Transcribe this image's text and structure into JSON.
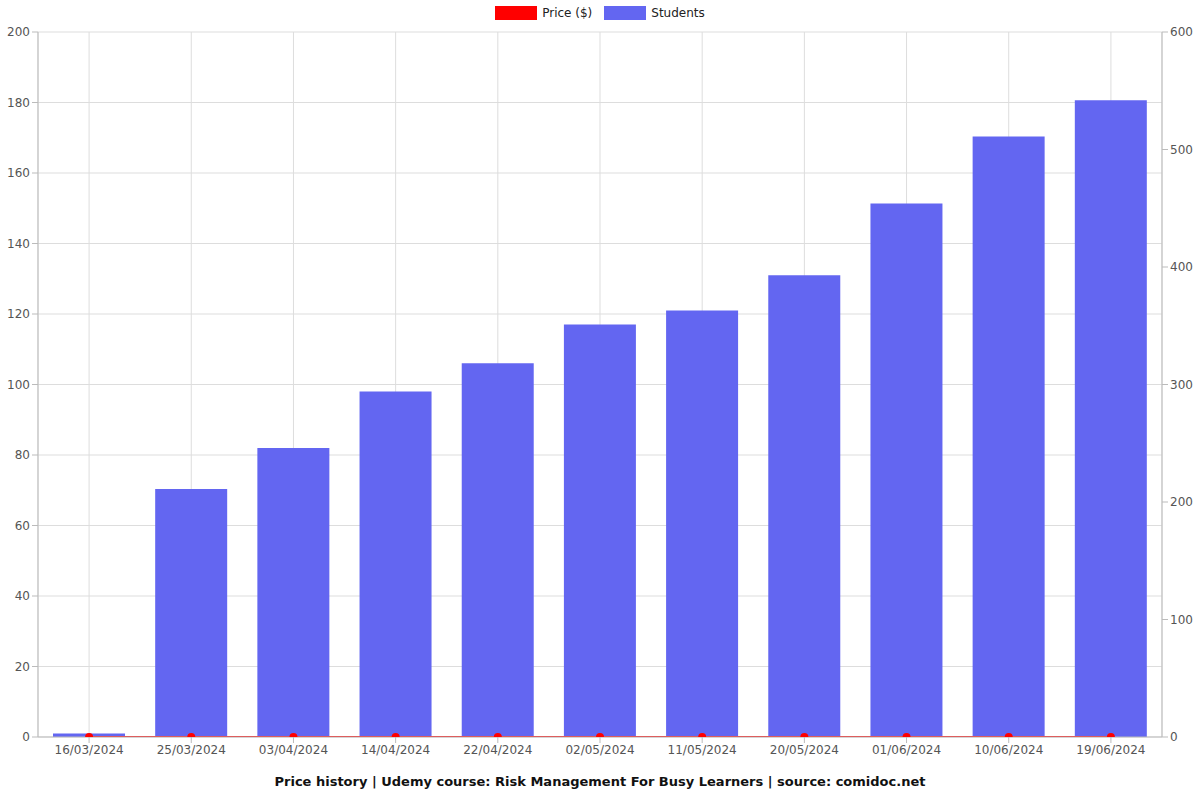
{
  "chart_data": {
    "type": "bar",
    "title": "Price history | Udemy course: Risk Management For Busy Learners | source: comidoc.net",
    "categories": [
      "16/03/2024",
      "25/03/2024",
      "03/04/2024",
      "14/04/2024",
      "22/04/2024",
      "02/05/2024",
      "11/05/2024",
      "20/05/2024",
      "01/06/2024",
      "10/06/2024",
      "19/06/2024"
    ],
    "series": [
      {
        "name": "Price ($)",
        "type": "line",
        "color": "#ff0000",
        "marker": "circle",
        "values": [
          0,
          0,
          0,
          0,
          0,
          0,
          0,
          0,
          0,
          0,
          0
        ]
      },
      {
        "name": "Students",
        "type": "bar",
        "color": "#6366f1",
        "axis": "y2",
        "values": [
          3,
          211,
          246,
          294,
          318,
          351,
          363,
          393,
          454,
          511,
          542
        ]
      }
    ],
    "ylim": [
      0,
      200
    ],
    "yticks": [
      0,
      20,
      40,
      60,
      80,
      100,
      120,
      140,
      160,
      180,
      200
    ],
    "y2lim": [
      0,
      600
    ],
    "y2ticks": [
      0,
      100,
      200,
      300,
      400,
      500,
      600
    ],
    "grid": true,
    "legend": "top"
  }
}
